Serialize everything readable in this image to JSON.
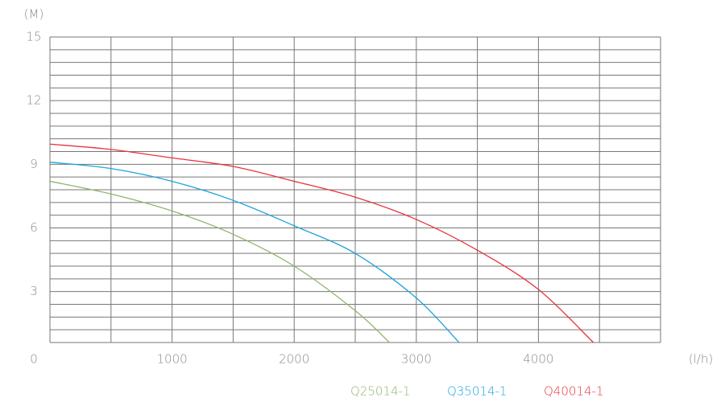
{
  "chart_data": {
    "type": "line",
    "y_unit": "(M)",
    "x_unit": "(l/h)",
    "xlim": [
      0,
      5000
    ],
    "ylim": [
      0.6,
      15
    ],
    "xticks": [
      0,
      1000,
      2000,
      3000,
      4000
    ],
    "yticks": [
      3,
      6,
      9,
      12,
      15
    ],
    "xgrid_step": 500,
    "ygrid_step": 0.6,
    "series": [
      {
        "name": "Q25014-1",
        "color": "#8fb56a",
        "x": [
          0,
          500,
          1000,
          1500,
          2000,
          2500,
          2780
        ],
        "values": [
          8.2,
          7.6,
          6.8,
          5.7,
          4.2,
          2.1,
          0.6
        ]
      },
      {
        "name": "Q35014-1",
        "color": "#1aa3dd",
        "x": [
          0,
          500,
          1000,
          1500,
          2000,
          2500,
          3000,
          3350
        ],
        "values": [
          9.1,
          8.8,
          8.2,
          7.3,
          6.1,
          4.8,
          2.7,
          0.6
        ]
      },
      {
        "name": "Q40014-1",
        "color": "#e8333c",
        "x": [
          0,
          500,
          1000,
          1500,
          2000,
          2500,
          3000,
          3500,
          4000,
          4450
        ],
        "values": [
          9.95,
          9.7,
          9.3,
          8.9,
          8.2,
          7.45,
          6.4,
          4.95,
          3.1,
          0.6
        ]
      }
    ]
  }
}
